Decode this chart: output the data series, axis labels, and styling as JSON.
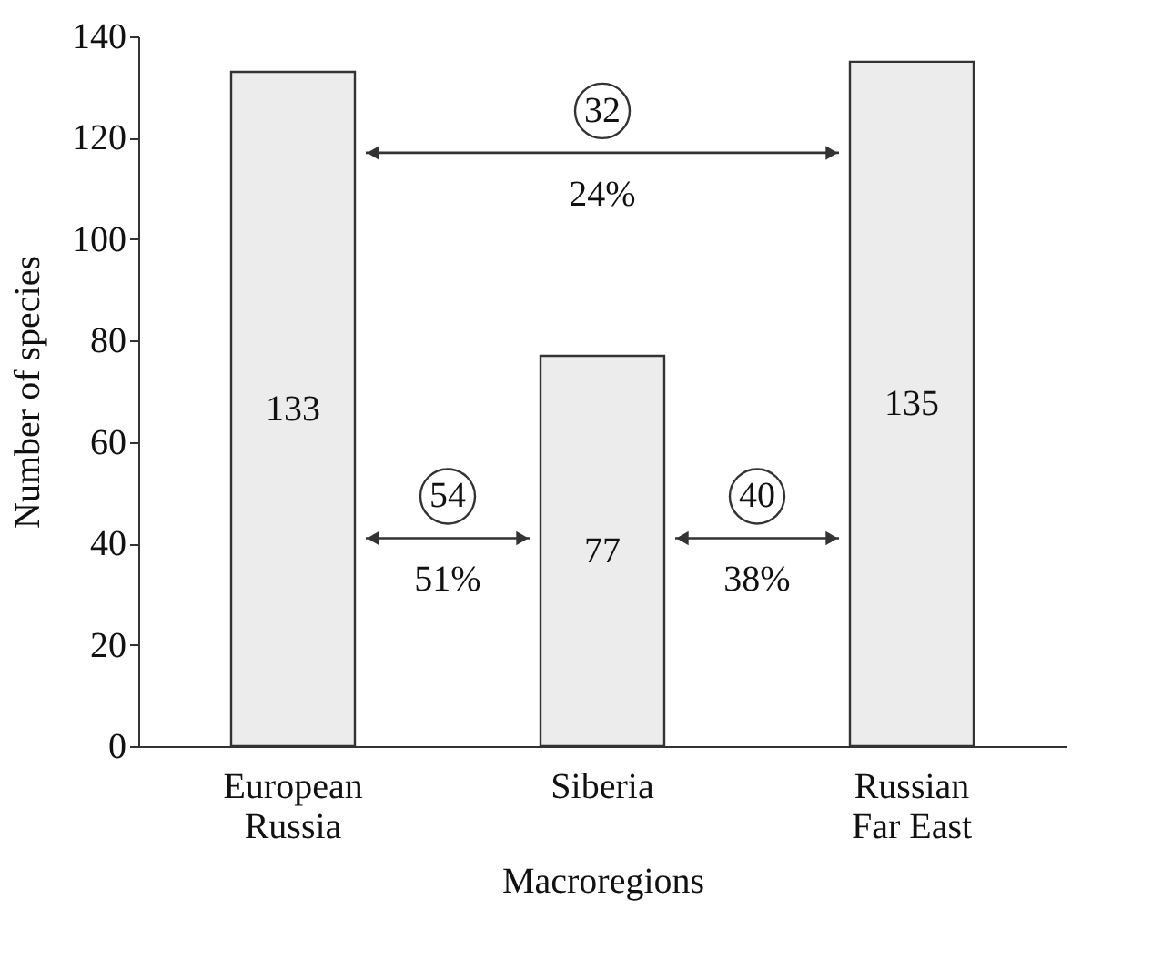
{
  "chart_data": {
    "type": "bar",
    "categories": [
      "European Russia",
      "Siberia",
      "Russian Far East"
    ],
    "values": [
      133,
      77,
      135
    ],
    "color": "#ececec",
    "data_labels": true,
    "xlabel": "Macroregions",
    "ylabel": "Number of species",
    "ylim": [
      0,
      140
    ],
    "yticks": [
      0,
      20,
      40,
      60,
      80,
      100,
      120,
      140
    ],
    "grid": false,
    "annotations": [
      "32",
      "24%",
      "54",
      "51%",
      "40",
      "38%"
    ]
  }
}
